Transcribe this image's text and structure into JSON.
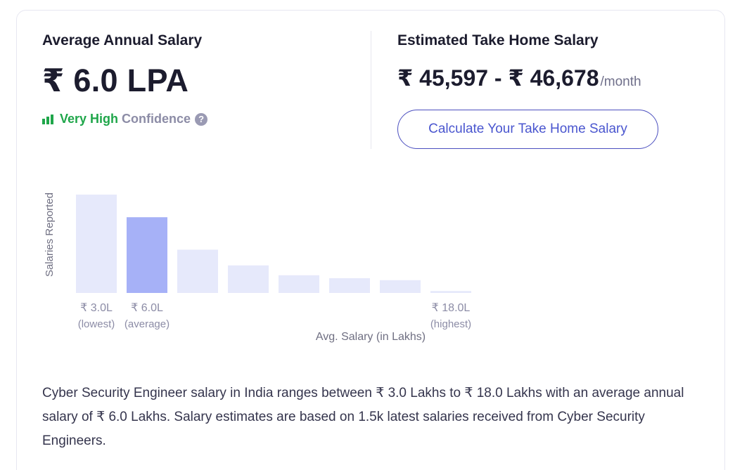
{
  "average": {
    "title": "Average Annual Salary",
    "value": "₹ 6.0 LPA",
    "confidence_level": "Very High",
    "confidence_label": "Confidence",
    "help_glyph": "?"
  },
  "take_home": {
    "title": "Estimated Take Home Salary",
    "range": "₹ 45,597 - ₹ 46,678",
    "unit": "/month",
    "button_label": "Calculate Your Take Home Salary"
  },
  "chart_data": {
    "type": "bar",
    "ylabel": "Salaries Reported",
    "xlabel": "Avg. Salary (in Lakhs)",
    "categories": [
      "₹ 3.0L",
      "₹ 6.0L",
      "",
      "",
      "",
      "",
      "",
      "₹ 18.0L"
    ],
    "category_notes": [
      "(lowest)",
      "(average)",
      "",
      "",
      "",
      "",
      "",
      "(highest)"
    ],
    "values": [
      100,
      77,
      44,
      28,
      18,
      15,
      13,
      2
    ],
    "highlight_index": 1,
    "colors": {
      "bar": "#e6e9fb",
      "highlight": "#a6b1f7",
      "label": "#8c8ca6",
      "axis_label": "#6f6f82"
    }
  },
  "description": "Cyber Security Engineer salary in India ranges between ₹ 3.0 Lakhs to ₹ 18.0 Lakhs with an average annual salary of ₹ 6.0 Lakhs. Salary estimates are based on 1.5k latest salaries received from Cyber Security Engineers.",
  "icons": {
    "confidence": "signal-bars-icon",
    "help": "question-circle-icon"
  },
  "colors": {
    "accent": "#4a56cf",
    "confidence": "#1fa64a"
  }
}
